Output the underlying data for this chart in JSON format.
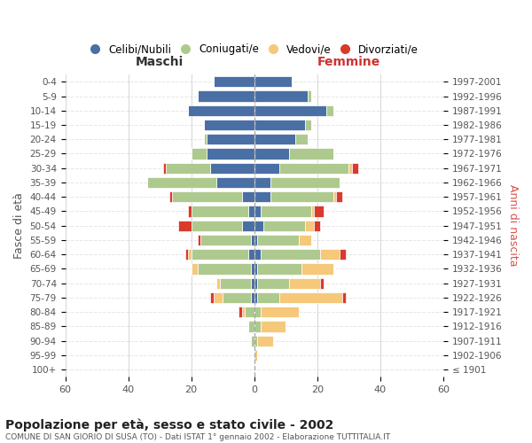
{
  "age_groups": [
    "100+",
    "95-99",
    "90-94",
    "85-89",
    "80-84",
    "75-79",
    "70-74",
    "65-69",
    "60-64",
    "55-59",
    "50-54",
    "45-49",
    "40-44",
    "35-39",
    "30-34",
    "25-29",
    "20-24",
    "15-19",
    "10-14",
    "5-9",
    "0-4"
  ],
  "birth_years": [
    "≤ 1901",
    "1902-1906",
    "1907-1911",
    "1912-1916",
    "1917-1921",
    "1922-1926",
    "1927-1931",
    "1932-1936",
    "1937-1941",
    "1942-1946",
    "1947-1951",
    "1952-1956",
    "1957-1961",
    "1962-1966",
    "1967-1971",
    "1972-1976",
    "1977-1981",
    "1982-1986",
    "1987-1991",
    "1992-1996",
    "1997-2001"
  ],
  "male": {
    "celibi": [
      0,
      0,
      0,
      0,
      0,
      1,
      1,
      1,
      2,
      1,
      4,
      2,
      4,
      12,
      14,
      15,
      15,
      16,
      21,
      18,
      13
    ],
    "coniugati": [
      0,
      0,
      1,
      2,
      3,
      9,
      10,
      17,
      18,
      16,
      16,
      18,
      22,
      22,
      14,
      5,
      1,
      0,
      0,
      0,
      0
    ],
    "vedovi": [
      0,
      0,
      0,
      0,
      1,
      3,
      1,
      2,
      1,
      0,
      0,
      0,
      0,
      0,
      0,
      0,
      0,
      0,
      0,
      0,
      0
    ],
    "divorziati": [
      0,
      0,
      0,
      0,
      1,
      1,
      0,
      0,
      1,
      1,
      4,
      1,
      1,
      0,
      1,
      0,
      0,
      0,
      0,
      0,
      0
    ]
  },
  "female": {
    "nubili": [
      0,
      0,
      0,
      0,
      0,
      1,
      1,
      1,
      2,
      1,
      3,
      2,
      5,
      5,
      8,
      11,
      13,
      16,
      23,
      17,
      12
    ],
    "coniugate": [
      0,
      0,
      1,
      2,
      2,
      7,
      10,
      14,
      19,
      13,
      13,
      16,
      20,
      22,
      22,
      14,
      4,
      2,
      2,
      1,
      0
    ],
    "vedove": [
      0,
      1,
      5,
      8,
      12,
      20,
      10,
      10,
      6,
      4,
      3,
      1,
      1,
      0,
      1,
      0,
      0,
      0,
      0,
      0,
      0
    ],
    "divorziate": [
      0,
      0,
      0,
      0,
      0,
      1,
      1,
      0,
      2,
      0,
      2,
      3,
      2,
      0,
      2,
      0,
      0,
      0,
      0,
      0,
      0
    ]
  },
  "colors": {
    "celibi": "#4a6fa5",
    "coniugati": "#aec98e",
    "vedovi": "#f5c87a",
    "divorziati": "#d93a2b"
  },
  "title": "Popolazione per età, sesso e stato civile - 2002",
  "subtitle": "COMUNE DI SAN GIORIO DI SUSA (TO) - Dati ISTAT 1° gennaio 2002 - Elaborazione TUTTITALIA.IT",
  "xlabel_left": "Maschi",
  "xlabel_right": "Femmine",
  "ylabel_left": "Fasce di età",
  "ylabel_right": "Anni di nascita",
  "xlim": 60,
  "bg_color": "#ffffff",
  "grid_color": "#cccccc",
  "legend_labels": [
    "Celibi/Nubili",
    "Coniugati/e",
    "Vedovi/e",
    "Divorziati/e"
  ]
}
